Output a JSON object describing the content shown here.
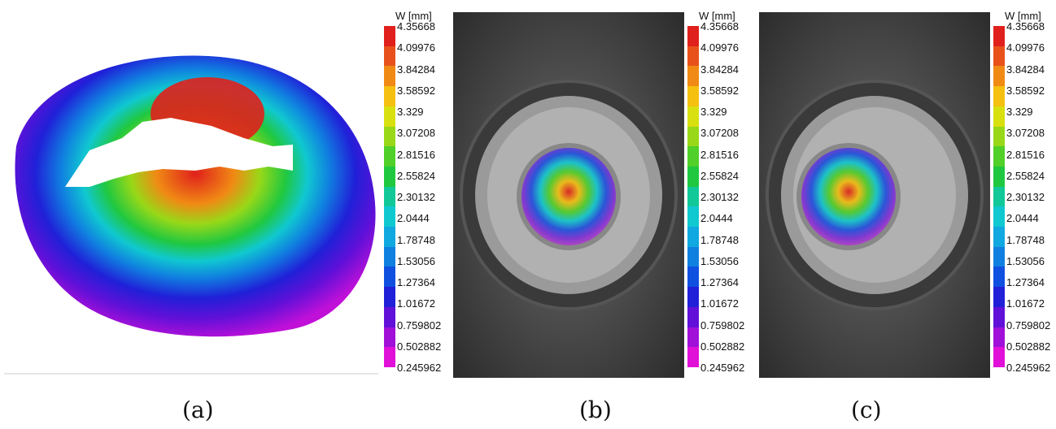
{
  "figure": {
    "colorbar": {
      "title": "W [mm]",
      "ticks": [
        "4.35668",
        "4.09976",
        "3.84284",
        "3.58592",
        "3.329",
        "3.07208",
        "2.81516",
        "2.55824",
        "2.30132",
        "2.0444",
        "1.78748",
        "1.53056",
        "1.27364",
        "1.01672",
        "0.759802",
        "0.502882",
        "0.245962"
      ],
      "colors": [
        "#e0201c",
        "#e8521a",
        "#f08a14",
        "#f5c010",
        "#d8e010",
        "#98d818",
        "#50d028",
        "#20c840",
        "#10c898",
        "#10c8d0",
        "#10a8e0",
        "#1080e0",
        "#1050e0",
        "#2020d8",
        "#6010d8",
        "#a010d8",
        "#e010d8"
      ]
    },
    "panels": [
      {
        "caption": "(a)"
      },
      {
        "caption": "(b)"
      },
      {
        "caption": "(c)"
      }
    ]
  }
}
